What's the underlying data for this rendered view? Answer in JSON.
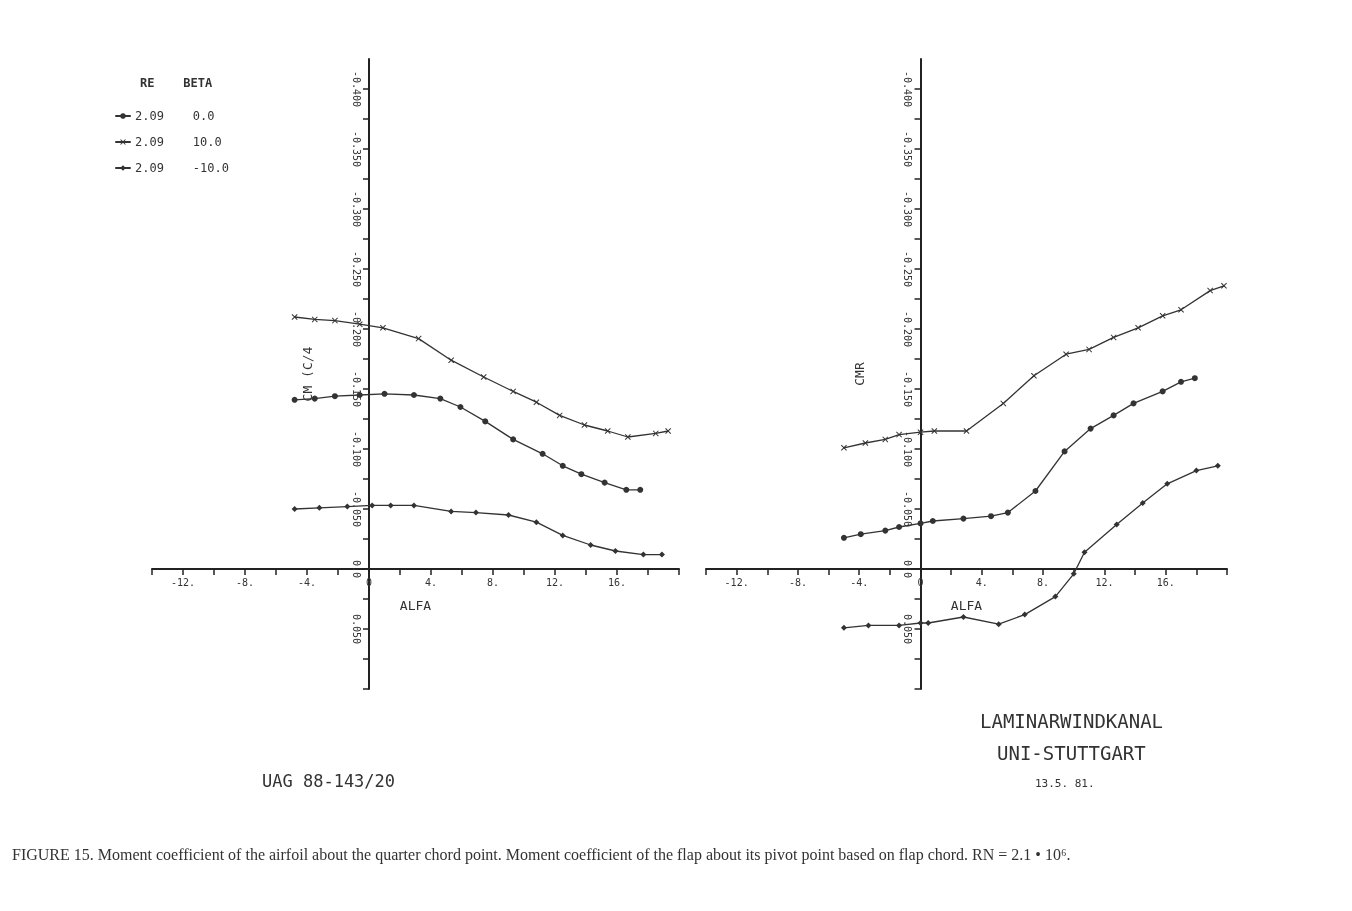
{
  "chart_data": [
    {
      "type": "line",
      "xlabel": "ALFA",
      "ylabel": "CM (C/4",
      "legend_title": "RE    BETA",
      "legend": "top left",
      "grid": false,
      "xlim": [
        -14,
        20
      ],
      "xticks": [
        {
          "value": -14,
          "label": null
        },
        {
          "value": -12,
          "label": "-12."
        },
        {
          "value": -10,
          "label": null
        },
        {
          "value": -8,
          "label": "-8."
        },
        {
          "value": -6,
          "label": null
        },
        {
          "value": -4,
          "label": "-4."
        },
        {
          "value": -2,
          "label": null
        },
        {
          "value": 0,
          "label": "0"
        },
        {
          "value": 2,
          "label": null
        },
        {
          "value": 4,
          "label": "4."
        },
        {
          "value": 6,
          "label": null
        },
        {
          "value": 8,
          "label": "8."
        },
        {
          "value": 10,
          "label": null
        },
        {
          "value": 12,
          "label": "12."
        },
        {
          "value": 14,
          "label": null
        },
        {
          "value": 16,
          "label": "16."
        },
        {
          "value": 18,
          "label": null
        },
        {
          "value": 20,
          "label": null
        }
      ],
      "ylim": [
        0.1,
        -0.425
      ],
      "yticks": [
        {
          "value": -0.4,
          "label": "-0.400"
        },
        {
          "value": -0.375,
          "label": null
        },
        {
          "value": -0.35,
          "label": "-0.350"
        },
        {
          "value": -0.325,
          "label": null
        },
        {
          "value": -0.3,
          "label": "-0.300"
        },
        {
          "value": -0.275,
          "label": null
        },
        {
          "value": -0.25,
          "label": "-0.250"
        },
        {
          "value": -0.225,
          "label": null
        },
        {
          "value": -0.2,
          "label": "-0.200"
        },
        {
          "value": -0.175,
          "label": null
        },
        {
          "value": -0.15,
          "label": "-0.150"
        },
        {
          "value": -0.125,
          "label": null
        },
        {
          "value": -0.1,
          "label": "-0.100"
        },
        {
          "value": -0.075,
          "label": null
        },
        {
          "value": -0.05,
          "label": "-0.050"
        },
        {
          "value": -0.025,
          "label": null
        },
        {
          "value": 0,
          "label": "0.0"
        },
        {
          "value": 0.025,
          "label": null
        },
        {
          "value": 0.05,
          "label": "0.050"
        },
        {
          "value": 0.075,
          "label": null
        },
        {
          "value": 0.1,
          "label": null
        }
      ],
      "series": [
        {
          "name": "2.09    0.0",
          "color": "#333333",
          "marker": "circle",
          "x": [
            -4.8,
            -3.5,
            -2.2,
            -0.6,
            1.0,
            2.9,
            4.6,
            5.9,
            7.5,
            9.3,
            11.2,
            12.5,
            13.7,
            15.2,
            16.6,
            17.5
          ],
          "values": [
            -0.141,
            -0.142,
            -0.144,
            -0.145,
            -0.146,
            -0.145,
            -0.142,
            -0.135,
            -0.123,
            -0.108,
            -0.096,
            -0.086,
            -0.079,
            -0.072,
            -0.066,
            -0.066
          ]
        },
        {
          "name": "2.09    10.0",
          "color": "#333333",
          "marker": "cross",
          "x": [
            -4.8,
            -3.5,
            -2.2,
            -0.6,
            0.9,
            3.2,
            5.3,
            7.4,
            9.3,
            10.8,
            12.3,
            13.9,
            15.4,
            16.7,
            18.5,
            19.3
          ],
          "values": [
            -0.21,
            -0.208,
            -0.207,
            -0.204,
            -0.201,
            -0.192,
            -0.174,
            -0.16,
            -0.148,
            -0.139,
            -0.128,
            -0.12,
            -0.115,
            -0.11,
            -0.113,
            -0.115
          ]
        },
        {
          "name": "2.09    -10.0",
          "color": "#333333",
          "marker": "diamond",
          "x": [
            -4.8,
            -3.2,
            -1.4,
            0.2,
            1.4,
            2.9,
            5.3,
            6.9,
            9.0,
            10.8,
            12.5,
            14.3,
            15.9,
            17.7,
            18.9
          ],
          "values": [
            -0.05,
            -0.051,
            -0.052,
            -0.053,
            -0.053,
            -0.053,
            -0.048,
            -0.047,
            -0.045,
            -0.039,
            -0.028,
            -0.02,
            -0.015,
            -0.012,
            -0.012
          ]
        }
      ],
      "annotations": [
        "UAG 88-143/20",
        "FIGURE 15. Moment coefficient of the airfoil about the quarter chord point. Moment coefficient of the flap about its pivot point based on flap chord. RN = 2.1 • 10⁶."
      ]
    },
    {
      "type": "line",
      "xlabel": "ALFA",
      "ylabel": "CMR",
      "grid": false,
      "xlim": [
        -14,
        20
      ],
      "xticks": [
        {
          "value": -14,
          "label": null
        },
        {
          "value": -12,
          "label": "-12."
        },
        {
          "value": -10,
          "label": null
        },
        {
          "value": -8,
          "label": "-8."
        },
        {
          "value": -6,
          "label": null
        },
        {
          "value": -4,
          "label": "-4."
        },
        {
          "value": -2,
          "label": null
        },
        {
          "value": 0,
          "label": "0"
        },
        {
          "value": 2,
          "label": null
        },
        {
          "value": 4,
          "label": "4."
        },
        {
          "value": 6,
          "label": null
        },
        {
          "value": 8,
          "label": "8."
        },
        {
          "value": 10,
          "label": null
        },
        {
          "value": 12,
          "label": "12."
        },
        {
          "value": 14,
          "label": null
        },
        {
          "value": 16,
          "label": "16."
        },
        {
          "value": 18,
          "label": null
        },
        {
          "value": 20,
          "label": null
        }
      ],
      "ylim": [
        0.1,
        -0.425
      ],
      "yticks": [
        {
          "value": -0.4,
          "label": "-0.400"
        },
        {
          "value": -0.375,
          "label": null
        },
        {
          "value": -0.35,
          "label": "-0.350"
        },
        {
          "value": -0.325,
          "label": null
        },
        {
          "value": -0.3,
          "label": "-0.300"
        },
        {
          "value": -0.275,
          "label": null
        },
        {
          "value": -0.25,
          "label": "-0.250"
        },
        {
          "value": -0.225,
          "label": null
        },
        {
          "value": -0.2,
          "label": "-0.200"
        },
        {
          "value": -0.175,
          "label": null
        },
        {
          "value": -0.15,
          "label": "-0.150"
        },
        {
          "value": -0.125,
          "label": null
        },
        {
          "value": -0.1,
          "label": "-0.100"
        },
        {
          "value": -0.075,
          "label": null
        },
        {
          "value": -0.05,
          "label": "-0.050"
        },
        {
          "value": -0.025,
          "label": null
        },
        {
          "value": 0,
          "label": "0.0"
        },
        {
          "value": 0.025,
          "label": null
        },
        {
          "value": 0.05,
          "label": "0.050"
        },
        {
          "value": 0.075,
          "label": null
        },
        {
          "value": 0.1,
          "label": null
        }
      ],
      "series": [
        {
          "color": "#333333",
          "marker": "circle",
          "x": [
            -5.0,
            -3.9,
            -2.3,
            -1.4,
            0.0,
            0.8,
            2.8,
            4.6,
            5.7,
            7.5,
            9.4,
            11.1,
            12.6,
            13.9,
            15.8,
            17.0,
            17.9
          ],
          "values": [
            -0.026,
            -0.029,
            -0.032,
            -0.035,
            -0.038,
            -0.04,
            -0.042,
            -0.044,
            -0.047,
            -0.065,
            -0.098,
            -0.117,
            -0.128,
            -0.138,
            -0.148,
            -0.156,
            -0.159
          ]
        },
        {
          "color": "#333333",
          "marker": "cross",
          "x": [
            -5.0,
            -3.6,
            -2.3,
            -1.4,
            0.0,
            0.9,
            3.0,
            5.4,
            7.4,
            9.5,
            11.0,
            12.6,
            14.2,
            15.8,
            17.0,
            18.9,
            19.8
          ],
          "values": [
            -0.101,
            -0.105,
            -0.108,
            -0.112,
            -0.114,
            -0.115,
            -0.115,
            -0.138,
            -0.161,
            -0.179,
            -0.183,
            -0.193,
            -0.201,
            -0.211,
            -0.216,
            -0.232,
            -0.236
          ]
        },
        {
          "color": "#333333",
          "marker": "diamond",
          "x": [
            -5.0,
            -3.4,
            -1.4,
            0.0,
            0.5,
            2.8,
            5.1,
            6.8,
            8.8,
            10.0,
            10.7,
            12.8,
            14.5,
            16.1,
            18.0,
            19.4
          ],
          "values": [
            0.049,
            0.047,
            0.047,
            0.045,
            0.045,
            0.04,
            0.046,
            0.038,
            0.023,
            0.004,
            -0.014,
            -0.037,
            -0.055,
            -0.071,
            -0.082,
            -0.086
          ]
        }
      ],
      "annotations": [
        "LAMINARWINDKANAL",
        "UNI-STUTTGART",
        "13.5. 81."
      ]
    }
  ]
}
